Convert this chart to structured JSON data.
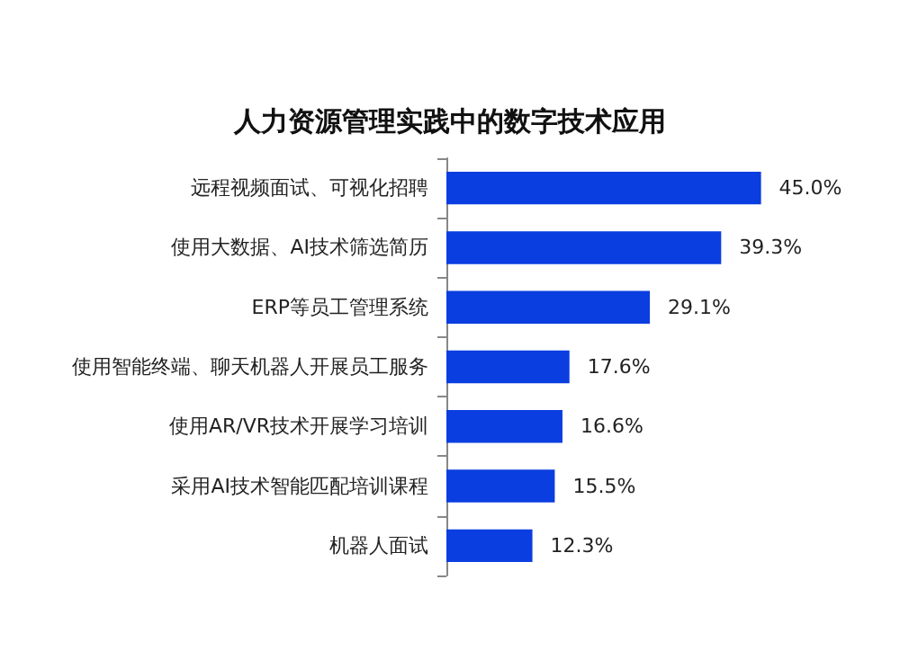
{
  "chart_data": {
    "type": "bar",
    "orientation": "horizontal",
    "title": "人力资源管理实践中的数字技术应用",
    "categories": [
      "远程视频面试、可视化招聘",
      "使用大数据、AI技术筛选简历",
      "ERP等员工管理系统",
      "使用智能终端、聊天机器人开展员工服务",
      "使用AR/VR技术开展学习培训",
      "采用AI技术智能匹配培训课程",
      "机器人面试"
    ],
    "values": [
      45.0,
      39.3,
      29.1,
      17.6,
      16.6,
      15.5,
      12.3
    ],
    "value_labels": [
      "45.0%",
      "39.3%",
      "29.1%",
      "17.6%",
      "16.6%",
      "15.5%",
      "12.3%"
    ],
    "color": "#0b3ee0"
  }
}
